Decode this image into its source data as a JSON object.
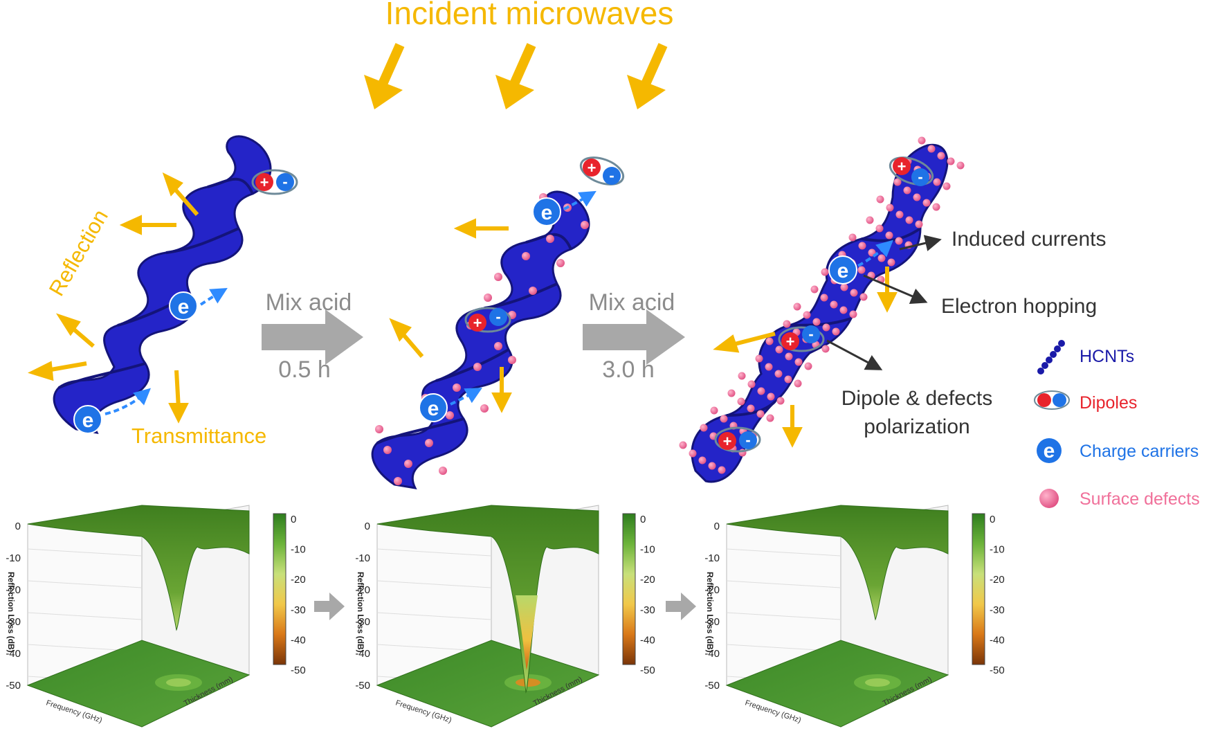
{
  "title": "Incident microwaves",
  "labels": {
    "reflection": "Reflection",
    "transmittance": "Transmittance",
    "charge_symbol": "e",
    "plus": "+",
    "minus": "-"
  },
  "steps": [
    {
      "line1": "Mix acid",
      "line2": "0.5 h"
    },
    {
      "line1": "Mix acid",
      "line2": "3.0 h"
    }
  ],
  "mechanisms": {
    "induced_currents": "Induced currents",
    "electron_hopping": "Electron hopping",
    "dipole_line1": "Dipole & defects",
    "dipole_line2": "polarization"
  },
  "legend": [
    {
      "label": "HCNTs",
      "color": "#1a1aa8",
      "icon": "helix-icon"
    },
    {
      "label": "Dipoles",
      "color": "#e8232c",
      "icon": "dipole-icon"
    },
    {
      "label": "Charge carriers",
      "color": "#1f73e6",
      "icon": "electron-icon"
    },
    {
      "label": "Surface defects",
      "color": "#f0709a",
      "icon": "defect-dot-icon"
    }
  ],
  "plots": {
    "colorbar_ticks": [
      "0",
      "-10",
      "-20",
      "-30",
      "-40",
      "-50"
    ],
    "z_ticks": [
      "0",
      "-10",
      "-20",
      "-30",
      "-40",
      "-50"
    ],
    "z_label": "Reflection Loss (dB)",
    "x_label": "Frequency (GHz)",
    "y_label": "Thickness (mm)"
  },
  "colors": {
    "helix": "#2424c8",
    "arrow_orange": "#f5b800",
    "process_arrow": "#a8a8a8",
    "surface_green": "#4e8a22",
    "defect_pink": "#ee5f90"
  }
}
